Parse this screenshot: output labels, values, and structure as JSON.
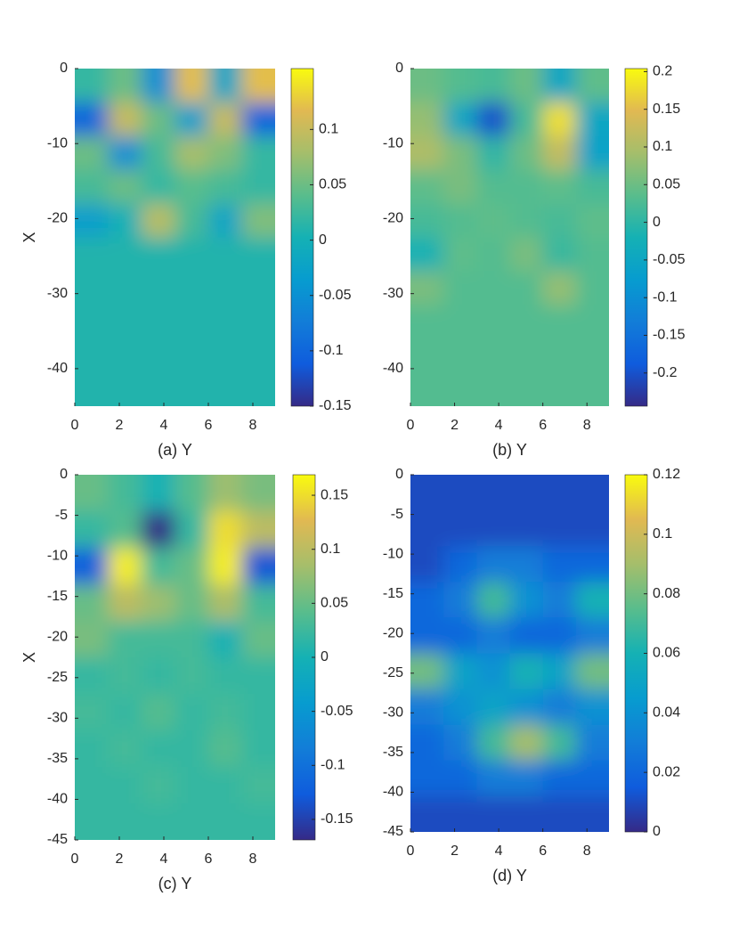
{
  "chart_data": [
    {
      "type": "heatmap",
      "xlabel": "(a) Y",
      "ylabel": "X",
      "xlim": [
        0,
        9
      ],
      "xticks": [
        0,
        2,
        4,
        6,
        8
      ],
      "ylim": [
        -45,
        0
      ],
      "yticks": [
        0,
        -10,
        -20,
        -30,
        -40
      ],
      "clim": [
        -0.15,
        0.155
      ],
      "cticks": [
        0.1,
        0.05,
        0,
        -0.05,
        -0.1,
        -0.15
      ],
      "z": [
        [
          0.02,
          0.05,
          -0.05,
          0.12,
          -0.02,
          0.12
        ],
        [
          -0.1,
          0.1,
          0.05,
          -0.03,
          0.1,
          -0.1
        ],
        [
          0.05,
          -0.05,
          0.03,
          0.08,
          0.06,
          0.02
        ],
        [
          0.03,
          0.05,
          0.02,
          0.04,
          0.03,
          0.02
        ],
        [
          -0.03,
          0.0,
          0.09,
          0.03,
          -0.02,
          0.06
        ],
        [
          0.01,
          0.01,
          0.01,
          0.01,
          0.01,
          0.01
        ],
        [
          0.01,
          0.01,
          0.01,
          0.01,
          0.01,
          0.01
        ],
        [
          0.01,
          0.01,
          0.01,
          0.01,
          0.01,
          0.01
        ],
        [
          0.01,
          0.01,
          0.01,
          0.01,
          0.01,
          0.01
        ],
        [
          0.01,
          0.01,
          0.01,
          0.01,
          0.01,
          0.01
        ]
      ]
    },
    {
      "type": "heatmap",
      "xlabel": "(b) Y",
      "xlim": [
        0,
        9
      ],
      "xticks": [
        0,
        2,
        4,
        6,
        8
      ],
      "ylim": [
        -45,
        0
      ],
      "yticks": [
        0,
        -10,
        -20,
        -30,
        -40
      ],
      "clim": [
        -0.244,
        0.204
      ],
      "cticks": [
        0.2,
        0.15,
        0.1,
        0.05,
        0,
        -0.05,
        -0.1,
        -0.15,
        -0.2
      ],
      "z": [
        [
          0.05,
          0.03,
          0.02,
          0.05,
          -0.05,
          0.04
        ],
        [
          0.08,
          -0.05,
          -0.2,
          0.02,
          0.18,
          -0.05
        ],
        [
          0.1,
          0.06,
          0.0,
          0.05,
          0.12,
          -0.06
        ],
        [
          0.04,
          0.06,
          0.03,
          0.03,
          0.04,
          0.02
        ],
        [
          0.02,
          0.03,
          0.04,
          0.03,
          0.02,
          0.04
        ],
        [
          -0.02,
          0.04,
          0.03,
          0.06,
          0.01,
          0.03
        ],
        [
          0.06,
          0.03,
          0.03,
          0.03,
          0.08,
          0.03
        ],
        [
          0.03,
          0.03,
          0.03,
          0.03,
          0.03,
          0.03
        ],
        [
          0.03,
          0.03,
          0.03,
          0.03,
          0.03,
          0.03
        ],
        [
          0.03,
          0.03,
          0.03,
          0.03,
          0.03,
          0.03
        ]
      ]
    },
    {
      "type": "heatmap",
      "xlabel": "(c) Y",
      "ylabel": "X",
      "xlim": [
        0,
        9
      ],
      "xticks": [
        0,
        2,
        4,
        6,
        8
      ],
      "ylim": [
        -45,
        0
      ],
      "yticks": [
        0,
        -5,
        -10,
        -15,
        -20,
        -25,
        -30,
        -35,
        -40,
        -45
      ],
      "clim": [
        -0.169,
        0.169
      ],
      "cticks": [
        0.15,
        0.1,
        0.05,
        0,
        -0.05,
        -0.1,
        -0.15
      ],
      "z": [
        [
          0.05,
          0.03,
          0.0,
          0.04,
          0.08,
          0.06
        ],
        [
          0.02,
          0.04,
          -0.17,
          0.02,
          0.15,
          0.1
        ],
        [
          -0.12,
          0.16,
          0.03,
          0.05,
          0.16,
          -0.13
        ],
        [
          0.05,
          0.1,
          0.08,
          0.05,
          0.09,
          0.03
        ],
        [
          0.06,
          0.03,
          0.03,
          0.03,
          0.0,
          0.05
        ],
        [
          0.02,
          0.03,
          0.02,
          0.03,
          0.02,
          0.02
        ],
        [
          0.03,
          0.02,
          0.04,
          0.02,
          0.03,
          0.02
        ],
        [
          0.02,
          0.03,
          0.02,
          0.02,
          0.04,
          0.02
        ],
        [
          0.02,
          0.02,
          0.03,
          0.02,
          0.02,
          0.03
        ],
        [
          0.02,
          0.02,
          0.02,
          0.02,
          0.02,
          0.02
        ]
      ]
    },
    {
      "type": "heatmap",
      "xlabel": "(d) Y",
      "xlim": [
        0,
        9
      ],
      "xticks": [
        0,
        2,
        4,
        6,
        8
      ],
      "ylim": [
        -45,
        0
      ],
      "yticks": [
        0,
        -5,
        -10,
        -15,
        -20,
        -25,
        -30,
        -35,
        -40,
        -45
      ],
      "clim": [
        0,
        0.12
      ],
      "cticks": [
        0.12,
        0.1,
        0.08,
        0.06,
        0.04,
        0.02,
        0
      ],
      "z": [
        [
          0.01,
          0.01,
          0.01,
          0.01,
          0.01,
          0.01
        ],
        [
          0.01,
          0.01,
          0.01,
          0.01,
          0.01,
          0.01
        ],
        [
          0.01,
          0.02,
          0.03,
          0.03,
          0.02,
          0.02
        ],
        [
          0.02,
          0.03,
          0.07,
          0.04,
          0.03,
          0.06
        ],
        [
          0.02,
          0.02,
          0.03,
          0.02,
          0.02,
          0.03
        ],
        [
          0.08,
          0.05,
          0.04,
          0.06,
          0.05,
          0.08
        ],
        [
          0.03,
          0.04,
          0.05,
          0.04,
          0.03,
          0.04
        ],
        [
          0.02,
          0.03,
          0.07,
          0.09,
          0.07,
          0.03
        ],
        [
          0.02,
          0.02,
          0.03,
          0.03,
          0.02,
          0.02
        ],
        [
          0.01,
          0.01,
          0.01,
          0.01,
          0.01,
          0.01
        ]
      ]
    }
  ]
}
